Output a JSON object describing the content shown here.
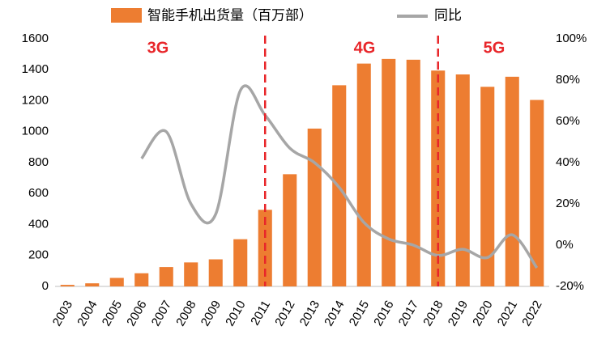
{
  "chart_data": {
    "type": "bar-line",
    "categories": [
      "2003",
      "2004",
      "2005",
      "2006",
      "2007",
      "2008",
      "2009",
      "2010",
      "2011",
      "2012",
      "2013",
      "2014",
      "2015",
      "2016",
      "2017",
      "2018",
      "2019",
      "2020",
      "2021",
      "2022"
    ],
    "series": [
      {
        "name": "智能手机出货量（百万部）",
        "type": "bar",
        "color": "#ed7d31",
        "values": [
          10,
          20,
          55,
          85,
          125,
          155,
          175,
          305,
          495,
          725,
          1020,
          1300,
          1440,
          1470,
          1465,
          1395,
          1370,
          1290,
          1355,
          1205
        ]
      },
      {
        "name": "同比",
        "type": "line",
        "axis": "y2",
        "color": "#a6a6a6",
        "values": [
          null,
          null,
          null,
          42,
          55,
          20,
          15,
          75,
          63,
          47,
          40,
          28,
          11,
          3,
          0,
          -5,
          -2,
          -6,
          5,
          -11
        ]
      }
    ],
    "ylim": [
      0,
      1600
    ],
    "yticks": [
      0,
      200,
      400,
      600,
      800,
      1000,
      1200,
      1400,
      1600
    ],
    "y2lim": [
      -20,
      100
    ],
    "y2ticks": [
      {
        "value": -20,
        "label": "-20%"
      },
      {
        "value": 0,
        "label": "0%"
      },
      {
        "value": 20,
        "label": "20%"
      },
      {
        "value": 40,
        "label": "40%"
      },
      {
        "value": 60,
        "label": "60%"
      },
      {
        "value": 80,
        "label": "80%"
      },
      {
        "value": 100,
        "label": "100%"
      }
    ],
    "annotations": [
      "3G",
      "4G",
      "5G"
    ],
    "grid": false
  }
}
